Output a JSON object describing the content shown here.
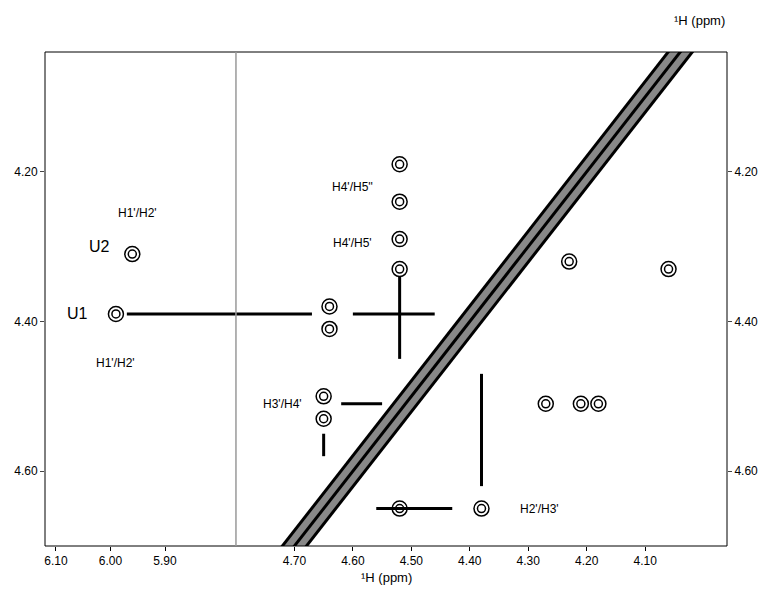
{
  "chart_data": {
    "type": "nmr_2d",
    "axis_label": "¹H (ppm)",
    "grid": false,
    "tick_labels": true,
    "color": "#000000",
    "marker": "circle-open",
    "ylim": [
      4.04,
      4.7
    ],
    "yticks": [
      {
        "value": 4.2,
        "label": "4.20"
      },
      {
        "value": 4.4,
        "label": "4.40"
      },
      {
        "value": 4.6,
        "label": "4.60"
      }
    ],
    "panels": [
      {
        "xlim": [
          6.12,
          5.77
        ],
        "xticks": [
          {
            "value": 6.1,
            "label": "6.10"
          },
          {
            "value": 6.0,
            "label": "6.00"
          },
          {
            "value": 5.9,
            "label": "5.90"
          }
        ],
        "peaks": {
          "x": [
            5.99,
            5.96
          ],
          "y": [
            4.39,
            4.31
          ]
        },
        "lines": [
          {
            "x": [
              5.97,
              5.77
            ],
            "y": [
              4.39,
              4.39
            ]
          }
        ],
        "annotations": [
          {
            "text": "U1",
            "x": 6.06,
            "y": 4.39
          },
          {
            "text": "U2",
            "x": 6.02,
            "y": 4.3
          },
          {
            "text": "H1'/H2'",
            "x": 5.95,
            "y": 4.255
          },
          {
            "text": "H1'/H2'",
            "x": 5.99,
            "y": 4.455
          }
        ]
      },
      {
        "xlim": [
          4.8,
          3.96
        ],
        "xticks": [
          {
            "value": 4.7,
            "label": "4.70"
          },
          {
            "value": 4.6,
            "label": "4.60"
          },
          {
            "value": 4.5,
            "label": "4.50"
          },
          {
            "value": 4.4,
            "label": "4.40"
          },
          {
            "value": 4.3,
            "label": "4.30"
          },
          {
            "value": 4.2,
            "label": "4.20"
          },
          {
            "value": 4.1,
            "label": "4.10"
          }
        ],
        "diagonal": {
          "x": [
            4.8,
            3.96
          ],
          "y": [
            4.8,
            3.96
          ],
          "color": "#888888"
        },
        "peaks": {
          "x": [
            4.64,
            4.64,
            4.52,
            4.52,
            4.52,
            4.52,
            4.65,
            4.65,
            4.52,
            4.38,
            4.27,
            4.21,
            4.18,
            4.06,
            4.23
          ],
          "y": [
            4.38,
            4.41,
            4.19,
            4.24,
            4.29,
            4.33,
            4.5,
            4.53,
            4.65,
            4.65,
            4.51,
            4.51,
            4.51,
            4.33,
            4.32
          ]
        },
        "lines": [
          {
            "x": [
              4.8,
              4.67
            ],
            "y": [
              4.39,
              4.39
            ]
          },
          {
            "x": [
              4.6,
              4.46
            ],
            "y": [
              4.39,
              4.39
            ]
          },
          {
            "x": [
              4.52,
              4.52
            ],
            "y": [
              4.34,
              4.45
            ]
          },
          {
            "x": [
              4.62,
              4.55
            ],
            "y": [
              4.51,
              4.51
            ]
          },
          {
            "x": [
              4.65,
              4.65
            ],
            "y": [
              4.55,
              4.58
            ]
          },
          {
            "x": [
              4.56,
              4.43
            ],
            "y": [
              4.65,
              4.65
            ]
          },
          {
            "x": [
              4.38,
              4.38
            ],
            "y": [
              4.47,
              4.62
            ]
          }
        ],
        "annotations": [
          {
            "text": "H4'/H5''",
            "x": 4.6,
            "y": 4.22
          },
          {
            "text": "H4'/H5'",
            "x": 4.6,
            "y": 4.295
          },
          {
            "text": "H3'/H4'",
            "x": 4.72,
            "y": 4.51
          },
          {
            "text": "H2'/H3'",
            "x": 4.28,
            "y": 4.65
          }
        ]
      }
    ]
  }
}
